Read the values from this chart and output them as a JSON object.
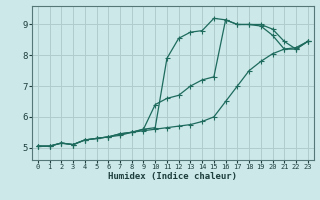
{
  "xlabel": "Humidex (Indice chaleur)",
  "bg_color": "#cce8e8",
  "grid_color": "#b0cccc",
  "line_color": "#1e6b5e",
  "xlim": [
    -0.5,
    23.5
  ],
  "ylim": [
    4.6,
    9.6
  ],
  "xticks": [
    0,
    1,
    2,
    3,
    4,
    5,
    6,
    7,
    8,
    9,
    10,
    11,
    12,
    13,
    14,
    15,
    16,
    17,
    18,
    19,
    20,
    21,
    22,
    23
  ],
  "yticks": [
    5,
    6,
    7,
    8,
    9
  ],
  "line1_x": [
    0,
    1,
    2,
    3,
    4,
    5,
    6,
    7,
    8,
    9,
    10,
    11,
    12,
    13,
    14,
    15,
    16,
    17,
    18,
    19,
    20,
    21,
    22,
    23
  ],
  "line1_y": [
    5.05,
    5.05,
    5.15,
    5.1,
    5.25,
    5.3,
    5.35,
    5.4,
    5.5,
    5.55,
    5.6,
    5.65,
    5.7,
    5.75,
    5.85,
    6.0,
    6.5,
    7.0,
    7.5,
    7.8,
    8.05,
    8.2,
    8.25,
    8.45
  ],
  "line2_x": [
    0,
    1,
    2,
    3,
    4,
    5,
    6,
    7,
    8,
    9,
    10,
    11,
    12,
    13,
    14,
    15,
    16,
    17,
    18,
    19,
    20,
    21,
    22,
    23
  ],
  "line2_y": [
    5.05,
    5.05,
    5.15,
    5.1,
    5.25,
    5.3,
    5.35,
    5.45,
    5.5,
    5.6,
    6.4,
    6.6,
    6.7,
    7.0,
    7.2,
    7.3,
    9.15,
    9.0,
    9.0,
    8.95,
    8.65,
    8.2,
    8.2,
    8.45
  ],
  "line3_x": [
    0,
    1,
    2,
    3,
    4,
    5,
    6,
    7,
    8,
    9,
    10,
    11,
    12,
    13,
    14,
    15,
    16,
    17,
    18,
    19,
    20,
    21,
    22,
    23
  ],
  "line3_y": [
    5.05,
    5.05,
    5.15,
    5.1,
    5.25,
    5.3,
    5.35,
    5.45,
    5.5,
    5.6,
    5.65,
    7.9,
    8.55,
    8.75,
    8.8,
    9.2,
    9.15,
    9.0,
    9.0,
    9.0,
    8.85,
    8.45,
    8.2,
    8.45
  ]
}
